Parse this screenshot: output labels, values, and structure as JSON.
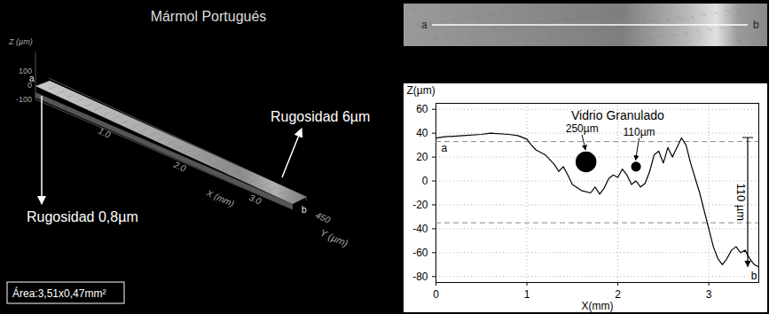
{
  "surface_view": {
    "title": "Mármol Portugués",
    "z_label": "Z (µm)",
    "z_ticks": [
      100,
      0,
      -100
    ],
    "x_label": "X (mm)",
    "x_ticks": [
      "1.0",
      "2.0",
      "3.0"
    ],
    "y_label": "Y (µm)",
    "y_ticks": [
      450
    ],
    "ends": [
      "a",
      "b"
    ],
    "roughness_start": "Rugosidad 0,8µm",
    "roughness_end": "Rugosidad 6µm",
    "area": "Área:3,51x0,47mm²"
  },
  "profile_strip": {
    "ends": [
      "a",
      "b"
    ]
  },
  "chart_data": {
    "type": "line",
    "x_label": "X(mm)",
    "y_label": "Z(µm)",
    "x": [
      0,
      0.1,
      0.3,
      0.5,
      0.6,
      0.8,
      0.9,
      1.0,
      1.05,
      1.1,
      1.2,
      1.3,
      1.35,
      1.4,
      1.45,
      1.5,
      1.6,
      1.7,
      1.75,
      1.8,
      1.85,
      1.9,
      1.95,
      2.0,
      2.05,
      2.1,
      2.15,
      2.2,
      2.25,
      2.3,
      2.35,
      2.4,
      2.45,
      2.5,
      2.55,
      2.6,
      2.7,
      2.75,
      2.8,
      2.9,
      3.0,
      3.05,
      3.1,
      3.15,
      3.2,
      3.25,
      3.3,
      3.35,
      3.4,
      3.45,
      3.5,
      3.55
    ],
    "values": [
      36,
      37,
      38,
      39,
      40,
      39,
      38,
      35,
      30,
      26,
      22,
      14,
      8,
      12,
      5,
      -3,
      -8,
      -10,
      -5,
      -11,
      -6,
      2,
      5,
      3,
      10,
      5,
      -3,
      0,
      -5,
      -2,
      8,
      22,
      25,
      15,
      28,
      20,
      36,
      30,
      15,
      -10,
      -40,
      -55,
      -65,
      -70,
      -65,
      -58,
      -55,
      -60,
      -58,
      -65,
      -70,
      -72
    ],
    "color": "#000000",
    "xlim": [
      0,
      3.55
    ],
    "xticks": [
      0,
      1,
      2,
      3
    ],
    "ylim": [
      -85,
      65
    ],
    "yticks": [
      -80,
      -60,
      -40,
      -20,
      0,
      20,
      40,
      60
    ],
    "grid": true,
    "end_labels": [
      "a",
      "b"
    ],
    "reference_lines": [
      33,
      -35
    ],
    "range_annotation": {
      "from": 36,
      "to": -72,
      "label": "110 µm"
    },
    "particles": {
      "name": "Vidrio Granulado",
      "x": [
        1.65,
        2.2
      ],
      "y": [
        16,
        12
      ],
      "size": [
        250,
        110
      ],
      "value_labels": [
        "250µm",
        "110µm"
      ],
      "color": "#000000"
    }
  }
}
